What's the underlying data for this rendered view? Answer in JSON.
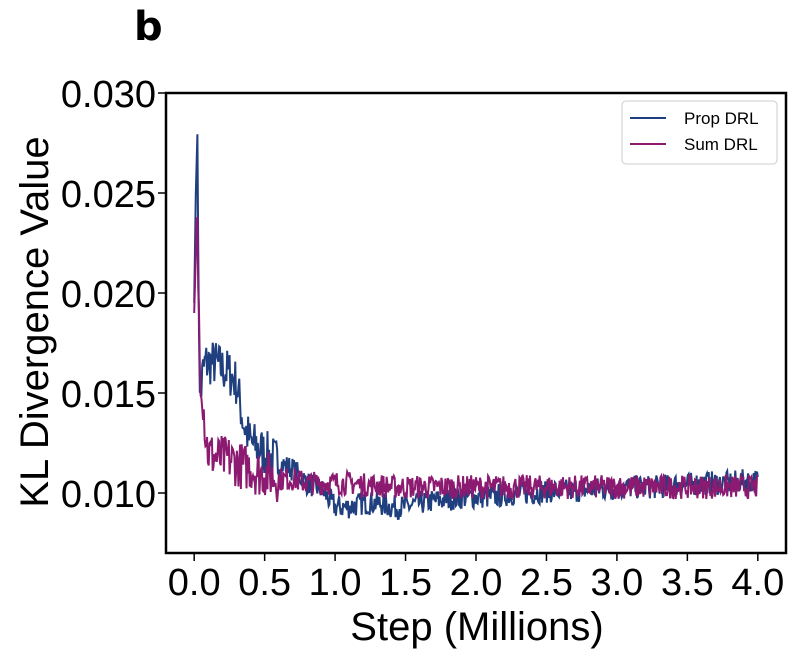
{
  "panel_label": "b",
  "chart_data": {
    "type": "line",
    "title": "",
    "xlabel": "Step (Millions)",
    "ylabel": "KL Divergence Value",
    "xlim": [
      -0.2,
      4.2
    ],
    "ylim": [
      0.007,
      0.03
    ],
    "x_ticks": [
      0.0,
      0.5,
      1.0,
      1.5,
      2.0,
      2.5,
      3.0,
      3.5,
      4.0
    ],
    "x_tick_labels": [
      "0.0",
      "0.5",
      "1.0",
      "1.5",
      "2.0",
      "2.5",
      "3.0",
      "3.5",
      "4.0"
    ],
    "y_ticks": [
      0.01,
      0.015,
      0.02,
      0.025,
      0.03
    ],
    "y_tick_labels": [
      "0.010",
      "0.015",
      "0.020",
      "0.025",
      "0.030"
    ],
    "grid": false,
    "legend_position": "top-right",
    "series": [
      {
        "name": "Prop DRL",
        "color": "#1f3f7f",
        "x": [
          0.0,
          0.02,
          0.04,
          0.06,
          0.08,
          0.1,
          0.15,
          0.2,
          0.25,
          0.3,
          0.35,
          0.4,
          0.45,
          0.5,
          0.6,
          0.7,
          0.8,
          0.9,
          1.0,
          1.1,
          1.2,
          1.3,
          1.4,
          1.5,
          1.6,
          1.7,
          1.8,
          1.9,
          2.0,
          2.1,
          2.2,
          2.3,
          2.4,
          2.5,
          2.6,
          2.7,
          2.8,
          2.9,
          3.0,
          3.1,
          3.2,
          3.3,
          3.4,
          3.5,
          3.6,
          3.7,
          3.8,
          3.9,
          4.0
        ],
        "y": [
          0.0195,
          0.029,
          0.0145,
          0.016,
          0.0165,
          0.0165,
          0.0165,
          0.0162,
          0.016,
          0.0155,
          0.0135,
          0.0125,
          0.0123,
          0.012,
          0.0115,
          0.0112,
          0.0105,
          0.0102,
          0.0093,
          0.0093,
          0.0095,
          0.0095,
          0.0093,
          0.0093,
          0.0095,
          0.0096,
          0.0097,
          0.0098,
          0.0098,
          0.0098,
          0.0099,
          0.01,
          0.01,
          0.0101,
          0.0101,
          0.0101,
          0.0102,
          0.0102,
          0.0102,
          0.0103,
          0.0103,
          0.0103,
          0.0104,
          0.0104,
          0.0105,
          0.0105,
          0.0105,
          0.0106,
          0.0106
        ]
      },
      {
        "name": "Sum DRL",
        "color": "#8b1a70",
        "x": [
          0.0,
          0.02,
          0.04,
          0.06,
          0.08,
          0.1,
          0.15,
          0.2,
          0.25,
          0.3,
          0.35,
          0.4,
          0.45,
          0.5,
          0.6,
          0.7,
          0.8,
          0.9,
          1.0,
          1.1,
          1.2,
          1.3,
          1.4,
          1.5,
          1.6,
          1.7,
          1.8,
          1.9,
          2.0,
          2.1,
          2.2,
          2.3,
          2.4,
          2.5,
          2.6,
          2.7,
          2.8,
          2.9,
          3.0,
          3.1,
          3.2,
          3.3,
          3.4,
          3.5,
          3.6,
          3.7,
          3.8,
          3.9,
          4.0
        ],
        "y": [
          0.019,
          0.024,
          0.0165,
          0.015,
          0.013,
          0.012,
          0.0118,
          0.0117,
          0.0117,
          0.0115,
          0.0113,
          0.0113,
          0.011,
          0.011,
          0.0107,
          0.0107,
          0.0105,
          0.0105,
          0.0105,
          0.0105,
          0.0104,
          0.0104,
          0.0103,
          0.0103,
          0.0103,
          0.0103,
          0.0103,
          0.0103,
          0.0103,
          0.0103,
          0.0103,
          0.0103,
          0.0103,
          0.0103,
          0.0103,
          0.0103,
          0.0103,
          0.0103,
          0.0103,
          0.0103,
          0.0103,
          0.0103,
          0.0103,
          0.0103,
          0.0103,
          0.0103,
          0.0103,
          0.0103,
          0.0103
        ]
      }
    ]
  }
}
